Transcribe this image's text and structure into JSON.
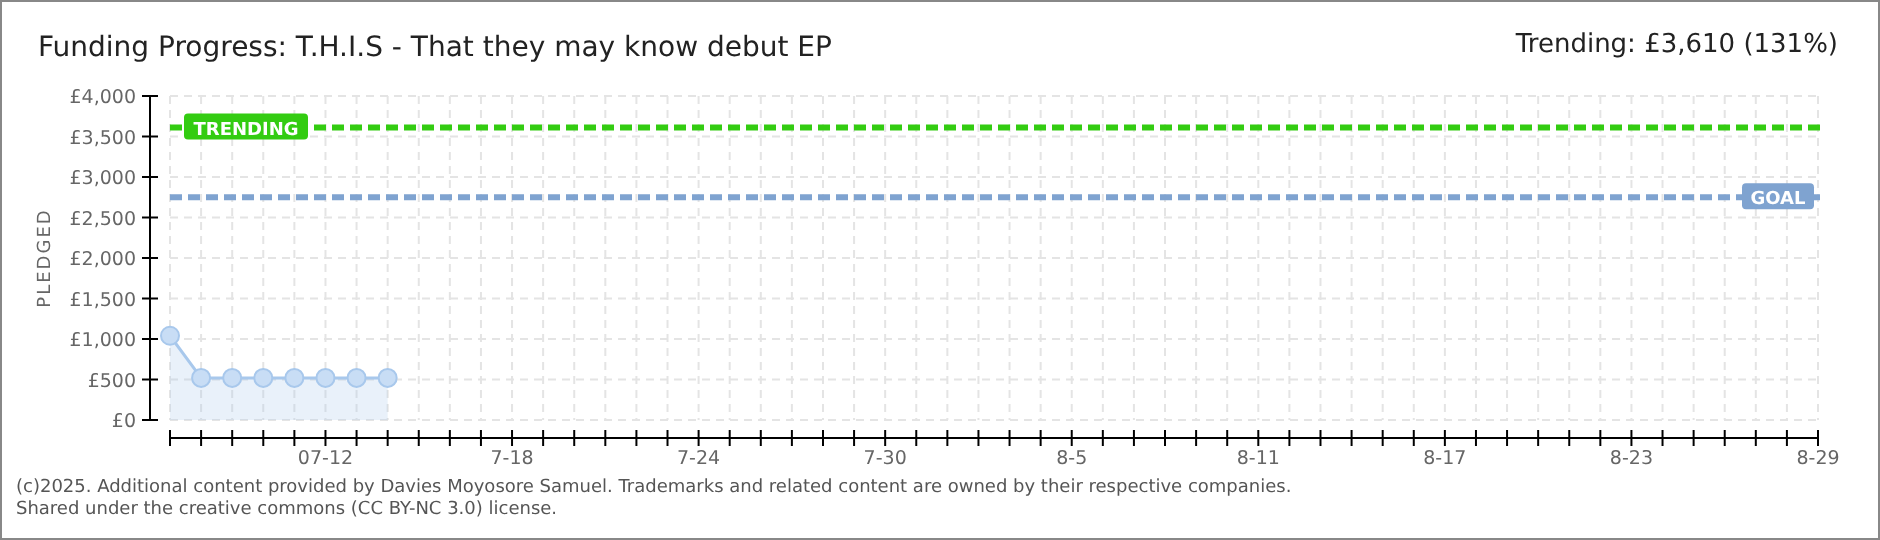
{
  "chart_data": {
    "type": "area",
    "title": "Funding Progress: T.H.I.S - That they may know debut EP",
    "subtitle": "Trending:  £3,610 (131%)",
    "ylabel": "PLEDGED",
    "x": [
      "--07-07",
      "--07-08",
      "--07-09",
      "--07-10",
      "--07-11",
      "--07-12",
      "--07-13",
      "--07-14"
    ],
    "series": [
      {
        "color": "#a8c8ec",
        "values": [
          1040,
          520,
          520,
          520,
          520,
          520,
          520,
          520
        ]
      }
    ],
    "marker": "circle",
    "grid": true,
    "xlim": [
      "--07-07",
      "--08-29"
    ],
    "xticks": [
      {
        "value": "--07-07",
        "label": null
      },
      {
        "value": "--07-08",
        "label": null
      },
      {
        "value": "--07-09",
        "label": null
      },
      {
        "value": "--07-10",
        "label": null
      },
      {
        "value": "--07-11",
        "label": null
      },
      {
        "value": "--07-12",
        "label": "07-12"
      },
      {
        "value": "--07-13",
        "label": null
      },
      {
        "value": "--07-14",
        "label": null
      },
      {
        "value": "--07-15",
        "label": null
      },
      {
        "value": "--07-16",
        "label": null
      },
      {
        "value": "--07-17",
        "label": null
      },
      {
        "value": "--07-18",
        "label": "7-18"
      },
      {
        "value": "--07-19",
        "label": null
      },
      {
        "value": "--07-20",
        "label": null
      },
      {
        "value": "--07-21",
        "label": null
      },
      {
        "value": "--07-22",
        "label": null
      },
      {
        "value": "--07-23",
        "label": null
      },
      {
        "value": "--07-24",
        "label": "7-24"
      },
      {
        "value": "--07-25",
        "label": null
      },
      {
        "value": "--07-26",
        "label": null
      },
      {
        "value": "--07-27",
        "label": null
      },
      {
        "value": "--07-28",
        "label": null
      },
      {
        "value": "--07-29",
        "label": null
      },
      {
        "value": "--07-30",
        "label": "7-30"
      },
      {
        "value": "--07-31",
        "label": null
      },
      {
        "value": "--08-01",
        "label": null
      },
      {
        "value": "--08-02",
        "label": null
      },
      {
        "value": "--08-03",
        "label": null
      },
      {
        "value": "--08-04",
        "label": null
      },
      {
        "value": "--08-05",
        "label": "8-5"
      },
      {
        "value": "--08-06",
        "label": null
      },
      {
        "value": "--08-07",
        "label": null
      },
      {
        "value": "--08-08",
        "label": null
      },
      {
        "value": "--08-09",
        "label": null
      },
      {
        "value": "--08-10",
        "label": null
      },
      {
        "value": "--08-11",
        "label": "8-11"
      },
      {
        "value": "--08-12",
        "label": null
      },
      {
        "value": "--08-13",
        "label": null
      },
      {
        "value": "--08-14",
        "label": null
      },
      {
        "value": "--08-15",
        "label": null
      },
      {
        "value": "--08-16",
        "label": null
      },
      {
        "value": "--08-17",
        "label": "8-17"
      },
      {
        "value": "--08-18",
        "label": null
      },
      {
        "value": "--08-19",
        "label": null
      },
      {
        "value": "--08-20",
        "label": null
      },
      {
        "value": "--08-21",
        "label": null
      },
      {
        "value": "--08-22",
        "label": null
      },
      {
        "value": "--08-23",
        "label": "8-23"
      },
      {
        "value": "--08-24",
        "label": null
      },
      {
        "value": "--08-25",
        "label": null
      },
      {
        "value": "--08-26",
        "label": null
      },
      {
        "value": "--08-27",
        "label": null
      },
      {
        "value": "--08-28",
        "label": null
      },
      {
        "value": "--08-29",
        "label": "8-29"
      }
    ],
    "ylim": [
      0,
      4000
    ],
    "yticks": [
      {
        "value": 0,
        "label": "£0"
      },
      {
        "value": 500,
        "label": "£500"
      },
      {
        "value": 1000,
        "label": "£1,000"
      },
      {
        "value": 1500,
        "label": "£1,500"
      },
      {
        "value": 2000,
        "label": "£2,000"
      },
      {
        "value": 2500,
        "label": "£2,500"
      },
      {
        "value": 3000,
        "label": "£3,000"
      },
      {
        "value": 3500,
        "label": "£3,500"
      },
      {
        "value": 4000,
        "label": "£4,000"
      }
    ],
    "ref_lines": [
      {
        "axis": "y",
        "value": 3610,
        "label": "TRENDING",
        "color": "#33cc11",
        "line_style": "dashed"
      },
      {
        "axis": "y",
        "value": 2750,
        "label": "GOAL",
        "color": "#7fa3d0",
        "line_style": "dashed"
      }
    ],
    "annotations": [
      "(c)2025. Additional content provided by Davies Moyosore Samuel. Trademarks and related content are owned by their respective companies.",
      "Shared under the creative commons (CC BY-NC 3.0) license."
    ]
  }
}
